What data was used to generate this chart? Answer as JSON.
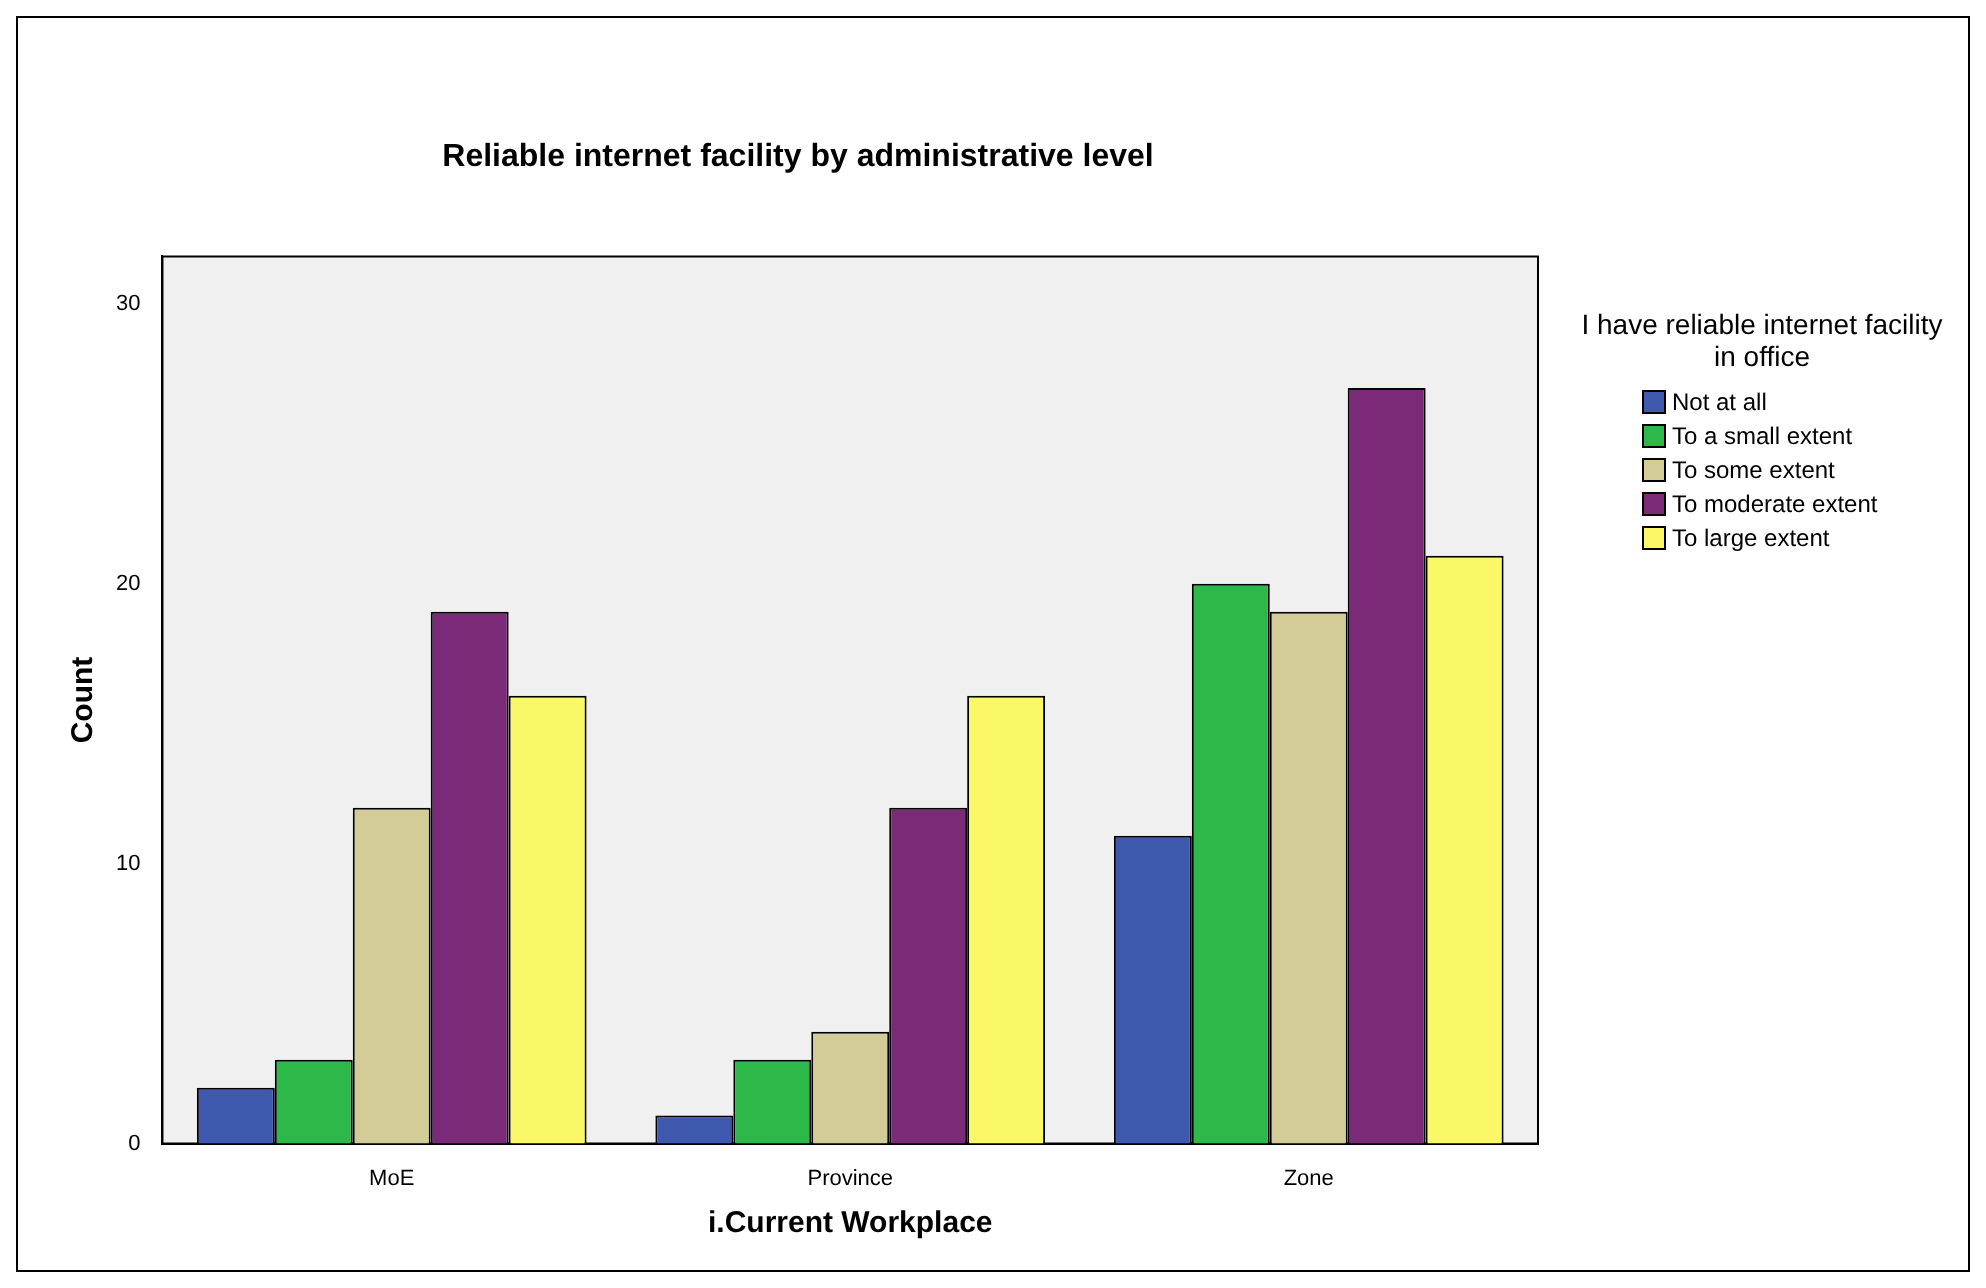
{
  "chart_data": {
    "type": "bar",
    "title": "Reliable internet facility by administrative level",
    "xlabel": "i.Current Workplace",
    "ylabel": "Count",
    "legend_title": "I have reliable internet facility in office",
    "legend": "top right",
    "grid": false,
    "categories": [
      "MoE",
      "Province",
      "Zone"
    ],
    "ylim": [
      0,
      31.7
    ],
    "yticks": [
      0,
      10,
      20,
      30
    ],
    "series": [
      {
        "name": "Not at all",
        "color": "#3e59ad",
        "values": [
          2,
          1,
          11
        ]
      },
      {
        "name": "To a small extent",
        "color": "#2db84a",
        "values": [
          3,
          3,
          20
        ]
      },
      {
        "name": "To some extent",
        "color": "#d4cc96",
        "values": [
          12,
          4,
          19
        ]
      },
      {
        "name": "To moderate extent",
        "color": "#7b2a78",
        "values": [
          19,
          12,
          27
        ]
      },
      {
        "name": "To large extent",
        "color": "#fbf868",
        "values": [
          16,
          16,
          21
        ]
      }
    ]
  }
}
